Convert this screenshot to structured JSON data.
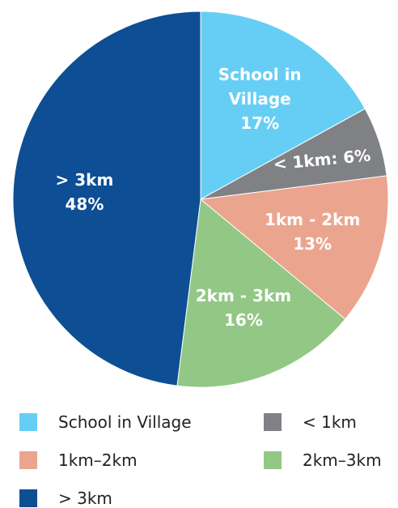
{
  "chart_data": {
    "type": "pie",
    "categories": [
      "School in Village",
      "< 1km",
      "1km–2km",
      "2km–3km",
      "> 3km"
    ],
    "slice_labels": [
      "School in Village",
      "< 1km:",
      "1km - 2km",
      "2km - 3km",
      "> 3km"
    ],
    "values": [
      17,
      6,
      13,
      16,
      48
    ],
    "value_labels": [
      "17%",
      "6%",
      "13%",
      "16%",
      "48%"
    ],
    "colors": [
      "#66cef5",
      "#808184",
      "#eba58f",
      "#92c785",
      "#0d4e94"
    ]
  }
}
